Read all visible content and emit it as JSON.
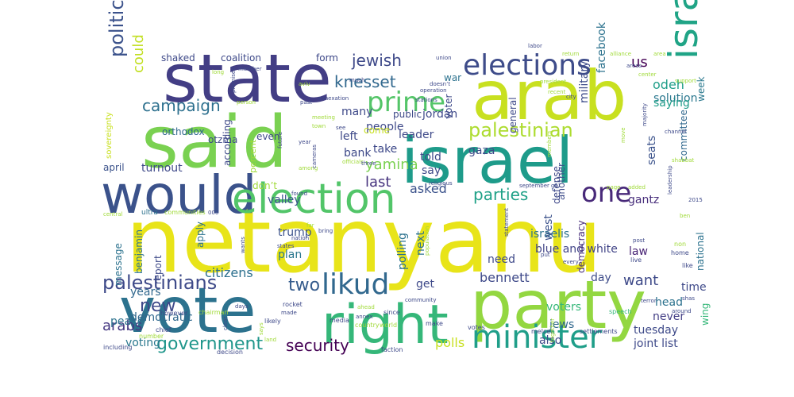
{
  "words": [
    {
      "text": "netanyahu",
      "color": "#e8e419"
    },
    {
      "text": "said",
      "color": "#7ad151"
    },
    {
      "text": "state",
      "color": "#433e85"
    },
    {
      "text": "arab",
      "color": "#c8e020"
    },
    {
      "text": "israel",
      "color": "#1e9b8a"
    },
    {
      "text": "party",
      "color": "#93d741"
    },
    {
      "text": "vote",
      "color": "#2c728e"
    },
    {
      "text": "would",
      "color": "#3b528b"
    },
    {
      "text": "right",
      "color": "#35b779"
    },
    {
      "text": "election",
      "color": "#52c569"
    },
    {
      "text": "elections",
      "color": "#3e4c8a"
    },
    {
      "text": "israeli",
      "color": "#20a486"
    },
    {
      "text": "minister",
      "color": "#1f9e89"
    },
    {
      "text": "prime",
      "color": "#54c568"
    },
    {
      "text": "palestinian",
      "color": "#addc30"
    },
    {
      "text": "one",
      "color": "#482979"
    },
    {
      "text": "likud",
      "color": "#31688e"
    },
    {
      "text": "palestinians",
      "color": "#3e4a89"
    },
    {
      "text": "government",
      "color": "#1f968b"
    },
    {
      "text": "security",
      "color": "#440154"
    },
    {
      "text": "political",
      "color": "#3b528b"
    },
    {
      "text": "campaign",
      "color": "#2d708e"
    },
    {
      "text": "jewish",
      "color": "#3e4989"
    },
    {
      "text": "knesset",
      "color": "#31688e"
    },
    {
      "text": "parties",
      "color": "#1fa187"
    },
    {
      "text": "two",
      "color": "#365c8d"
    },
    {
      "text": "new",
      "color": "#3e4989"
    },
    {
      "text": "arabs",
      "color": "#453781"
    },
    {
      "text": "could",
      "color": "#c2df23"
    },
    {
      "text": "us",
      "color": "#440154"
    },
    {
      "text": "odeh",
      "color": "#1f9e89"
    },
    {
      "text": "solution",
      "color": "#2a778e"
    },
    {
      "text": "saying",
      "color": "#1e9c89"
    },
    {
      "text": "facebook",
      "color": "#2c728e"
    },
    {
      "text": "military",
      "color": "#3e4c8a"
    },
    {
      "text": "seats",
      "color": "#3b528b"
    },
    {
      "text": "yamina",
      "color": "#7ad151"
    },
    {
      "text": "last",
      "color": "#46337e"
    },
    {
      "text": "asked",
      "color": "#3b528b"
    },
    {
      "text": "bennett",
      "color": "#3e4989"
    },
    {
      "text": "want",
      "color": "#3e4a89"
    },
    {
      "text": "citizens",
      "color": "#2d708e"
    },
    {
      "text": "blue and white",
      "color": "#414487"
    },
    {
      "text": "israelis",
      "color": "#2c728e"
    },
    {
      "text": "gantz",
      "color": "#472d7b"
    },
    {
      "text": "committee",
      "color": "#31688e"
    },
    {
      "text": "week",
      "color": "#2a788e"
    },
    {
      "text": "valley",
      "color": "#3a548c"
    },
    {
      "text": "law",
      "color": "#482475"
    },
    {
      "text": "day",
      "color": "#3e4c8a"
    },
    {
      "text": "democracy",
      "color": "#472d7b"
    },
    {
      "text": "tuesday",
      "color": "#3e4a89"
    },
    {
      "text": "joint list",
      "color": "#3e4989"
    },
    {
      "text": "polls",
      "color": "#c8e020"
    },
    {
      "text": "voters",
      "color": "#35b779"
    },
    {
      "text": "jews",
      "color": "#31688e"
    },
    {
      "text": "also",
      "color": "#3e4989"
    },
    {
      "text": "head",
      "color": "#2c728e"
    },
    {
      "text": "never",
      "color": "#433e85"
    },
    {
      "text": "time",
      "color": "#3e4989"
    },
    {
      "text": "national",
      "color": "#2c728e"
    },
    {
      "text": "wing",
      "color": "#35b779"
    },
    {
      "text": "years",
      "color": "#31688e"
    },
    {
      "text": "peace",
      "color": "#2c728e"
    },
    {
      "text": "democratic",
      "color": "#31688e"
    },
    {
      "text": "voting",
      "color": "#2a788e"
    },
    {
      "text": "turnout",
      "color": "#3e4989"
    },
    {
      "text": "april",
      "color": "#3b528b"
    },
    {
      "text": "report",
      "color": "#3e4a89"
    },
    {
      "text": "apply",
      "color": "#2c728e"
    },
    {
      "text": "message",
      "color": "#2c728e"
    },
    {
      "text": "benjamin",
      "color": "#2c728e"
    },
    {
      "text": "trump",
      "color": "#3b528b"
    },
    {
      "text": "plan",
      "color": "#2a778e"
    },
    {
      "text": "polling",
      "color": "#2c728e"
    },
    {
      "text": "next",
      "color": "#2c728e"
    },
    {
      "text": "need",
      "color": "#3e4989"
    },
    {
      "text": "get",
      "color": "#3e4989"
    },
    {
      "text": "west",
      "color": "#3b528b"
    },
    {
      "text": "left",
      "color": "#3e4989"
    },
    {
      "text": "bank",
      "color": "#3e4a89"
    },
    {
      "text": "take",
      "color": "#3e4989"
    },
    {
      "text": "told",
      "color": "#3e4989"
    },
    {
      "text": "say",
      "color": "#3e4989"
    },
    {
      "text": "another",
      "color": "#3e4c8a"
    },
    {
      "text": "defense",
      "color": "#3e4989"
    },
    {
      "text": "people",
      "color": "#3e4989"
    },
    {
      "text": "leader",
      "color": "#3e4989"
    },
    {
      "text": "jordan",
      "color": "#3e4989"
    },
    {
      "text": "gaza",
      "color": "#3e4989"
    },
    {
      "text": "general",
      "color": "#3e4989"
    },
    {
      "text": "public",
      "color": "#3e4989"
    },
    {
      "text": "war",
      "color": "#2c728e"
    },
    {
      "text": "voter",
      "color": "#3e4989"
    },
    {
      "text": "many",
      "color": "#3e4989"
    },
    {
      "text": "come",
      "color": "#c8e020"
    },
    {
      "text": "form",
      "color": "#3e4989"
    },
    {
      "text": "coalition",
      "color": "#3e4989"
    },
    {
      "text": "shaked",
      "color": "#3e4989"
    },
    {
      "text": "orthodox",
      "color": "#31688e"
    },
    {
      "text": "otzma",
      "color": "#3e4989"
    },
    {
      "text": "even",
      "color": "#3e4989"
    },
    {
      "text": "according",
      "color": "#3e4989"
    },
    {
      "text": "percent",
      "color": "#a0da39"
    },
    {
      "text": "don’t",
      "color": "#a0da39"
    },
    {
      "text": "sovereignty",
      "color": "#c8e020"
    },
    {
      "text": "ultra",
      "color": "#2c728e"
    },
    {
      "text": "communities",
      "color": "#a0da39"
    },
    {
      "text": "000",
      "color": "#3e4989"
    },
    {
      "text": "central",
      "color": "#a0da39"
    },
    {
      "text": "rocket",
      "color": "#3e4989"
    },
    {
      "text": "likely",
      "color": "#3e4989"
    },
    {
      "text": "however",
      "color": "#3e4989"
    },
    {
      "text": "chairman",
      "color": "#a0da39"
    },
    {
      "text": "chief",
      "color": "#3e4989"
    },
    {
      "text": "number",
      "color": "#a0da39"
    },
    {
      "text": "including",
      "color": "#3e4989"
    },
    {
      "text": "decision",
      "color": "#3e4989"
    },
    {
      "text": "faction",
      "color": "#3e4989"
    },
    {
      "text": "media",
      "color": "#3e4989"
    },
    {
      "text": "country",
      "color": "#a0da39"
    },
    {
      "text": "world",
      "color": "#a0da39"
    },
    {
      "text": "since",
      "color": "#3e4989"
    },
    {
      "text": "make",
      "color": "#3e4989"
    },
    {
      "text": "votes",
      "color": "#3e4989"
    },
    {
      "text": "speech",
      "color": "#35b779"
    },
    {
      "text": "settlements",
      "color": "#3e4989"
    },
    {
      "text": "melcer",
      "color": "#3e4989"
    },
    {
      "text": "together",
      "color": "#a0da39"
    },
    {
      "text": "terror",
      "color": "#3e4989"
    },
    {
      "text": "around",
      "color": "#3e4989"
    },
    {
      "text": "shas",
      "color": "#3e4989"
    },
    {
      "text": "like",
      "color": "#3e4989"
    },
    {
      "text": "home",
      "color": "#3e4989"
    },
    {
      "text": "non",
      "color": "#a0da39"
    },
    {
      "text": "live",
      "color": "#3e4989"
    },
    {
      "text": "post",
      "color": "#3e4989"
    },
    {
      "text": "every",
      "color": "#3e4989"
    },
    {
      "text": "put",
      "color": "#3e4989"
    },
    {
      "text": "2015",
      "color": "#3e4989"
    },
    {
      "text": "ben",
      "color": "#a0da39"
    },
    {
      "text": "leadership",
      "color": "#3e4989"
    },
    {
      "text": "channel",
      "color": "#3e4989"
    },
    {
      "text": "shabbat",
      "color": "#a0da39"
    },
    {
      "text": "majority",
      "color": "#3e4989"
    },
    {
      "text": "move",
      "color": "#a0da39"
    },
    {
      "text": "page",
      "color": "#a0da39"
    },
    {
      "text": "added",
      "color": "#a0da39"
    },
    {
      "text": "members",
      "color": "#a0da39"
    },
    {
      "text": "go",
      "color": "#3e4989"
    },
    {
      "text": "september",
      "color": "#3e4989"
    },
    {
      "text": "religious",
      "color": "#3e4989"
    },
    {
      "text": "statement",
      "color": "#3e4989"
    },
    {
      "text": "population",
      "color": "#a0da39"
    },
    {
      "text": "bring",
      "color": "#3e4989"
    },
    {
      "text": "nation",
      "color": "#3e4989"
    },
    {
      "text": "found",
      "color": "#3e4989"
    },
    {
      "text": "made",
      "color": "#3e4989"
    },
    {
      "text": "community",
      "color": "#3e4989"
    },
    {
      "text": "ahead",
      "color": "#a0da39"
    },
    {
      "text": "annex",
      "color": "#3e4989"
    },
    {
      "text": "clear",
      "color": "#3e4989"
    },
    {
      "text": "land",
      "color": "#a0da39"
    },
    {
      "text": "days",
      "color": "#3e4989"
    },
    {
      "text": "states",
      "color": "#3e4989"
    },
    {
      "text": "says",
      "color": "#a0da39"
    },
    {
      "text": "wants",
      "color": "#3e4989"
    },
    {
      "text": "far",
      "color": "#a0da39"
    },
    {
      "text": "among",
      "color": "#a0da39"
    },
    {
      "text": "cameras",
      "color": "#3e4989"
    },
    {
      "text": "year",
      "color": "#3e4989"
    },
    {
      "text": "future",
      "color": "#3e4989"
    },
    {
      "text": "town",
      "color": "#a0da39"
    },
    {
      "text": "officials",
      "color": "#a0da39"
    },
    {
      "text": "stations",
      "color": "#3e4989"
    },
    {
      "text": "operation",
      "color": "#3e4989"
    },
    {
      "text": "three",
      "color": "#3e4989"
    },
    {
      "text": "see",
      "color": "#3e4989"
    },
    {
      "text": "past",
      "color": "#3e4989"
    },
    {
      "text": "meeting",
      "color": "#a0da39"
    },
    {
      "text": "person",
      "color": "#a0da39"
    },
    {
      "text": "promised",
      "color": "#3e4989"
    },
    {
      "text": "long",
      "color": "#a0da39"
    },
    {
      "text": "member",
      "color": "#3e4989"
    },
    {
      "text": "aviv",
      "color": "#a0da39"
    },
    {
      "text": "annexation",
      "color": "#3e4989"
    },
    {
      "text": "much",
      "color": "#3e4989"
    },
    {
      "text": "doesn’t",
      "color": "#3e4989"
    },
    {
      "text": "union",
      "color": "#3e4989"
    },
    {
      "text": "labor",
      "color": "#3e4989"
    },
    {
      "text": "president",
      "color": "#a0da39"
    },
    {
      "text": "recent",
      "color": "#a0da39"
    },
    {
      "text": "city",
      "color": "#3e4989"
    },
    {
      "text": "return",
      "color": "#a0da39"
    },
    {
      "text": "alliance",
      "color": "#a0da39"
    },
    {
      "text": "areas",
      "color": "#3e4989"
    },
    {
      "text": "center",
      "color": "#a0da39"
    },
    {
      "text": "area",
      "color": "#a0da39"
    },
    {
      "text": "support",
      "color": "#a0da39"
    }
  ]
}
